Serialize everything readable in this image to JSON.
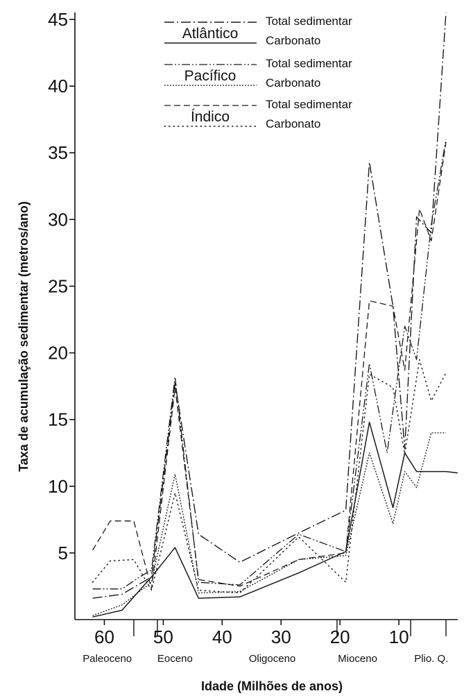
{
  "chart_data": {
    "type": "line",
    "xlabel": "Idade (Milhões de anos)",
    "ylabel": "Taxa de acumulação sedimentar (metros/ano)",
    "xlim": [
      65,
      0
    ],
    "ylim": [
      0,
      45
    ],
    "x_ticks": [
      {
        "value": 60,
        "label": "60"
      },
      {
        "value": 50,
        "label": "50"
      },
      {
        "value": 40,
        "label": "40"
      },
      {
        "value": 30,
        "label": "30"
      },
      {
        "value": 20,
        "label": "20"
      },
      {
        "value": 10,
        "label": "10"
      }
    ],
    "y_ticks": [
      {
        "value": 5,
        "label": "5"
      },
      {
        "value": 10,
        "label": "10"
      },
      {
        "value": 15,
        "label": "15"
      },
      {
        "value": 20,
        "label": "20"
      },
      {
        "value": 25,
        "label": "25"
      },
      {
        "value": 30,
        "label": "30"
      },
      {
        "value": 35,
        "label": "35"
      },
      {
        "value": 40,
        "label": "40"
      },
      {
        "value": 45,
        "label": "45"
      }
    ],
    "epoch_boundaries": [
      55,
      51,
      20.5,
      8,
      2
    ],
    "epochs": [
      {
        "label": "Paleoceno",
        "x": 59.5
      },
      {
        "label": "Eoceno",
        "x": 48
      },
      {
        "label": "Oligoceno",
        "x": 31.5
      },
      {
        "label": "Mioceno",
        "x": 17
      },
      {
        "label": "Plio. Q.",
        "x": 4.5
      }
    ],
    "legend": {
      "groups": [
        {
          "ocean": "Atlântico",
          "total_label": "Total sedimentar",
          "carbonate_label": "Carbonato"
        },
        {
          "ocean": "Pacífico",
          "total_label": "Total sedimentar",
          "carbonate_label": "Carbonato"
        },
        {
          "ocean": "Índico",
          "total_label": "Total sedimentar",
          "carbonate_label": "Carbonato"
        }
      ]
    },
    "series": [
      {
        "ocean": "Atlântico",
        "kind": "Total sedimentar",
        "style": "dashdot",
        "x": [
          62,
          57,
          52,
          48,
          44,
          37,
          27,
          19,
          15,
          11,
          9,
          7,
          4.5,
          2
        ],
        "y": [
          1.6,
          1.9,
          3.2,
          17.8,
          6.4,
          4.3,
          6.5,
          8.2,
          34.3,
          23.5,
          12.8,
          30.2,
          29,
          45.5
        ]
      },
      {
        "ocean": "Atlântico",
        "kind": "Carbonato",
        "style": "solid",
        "x": [
          62,
          57,
          52,
          48,
          44,
          37,
          27,
          19,
          15,
          11,
          9,
          7,
          4.5,
          2,
          0
        ],
        "y": [
          0.2,
          0.7,
          3.2,
          5.4,
          1.6,
          1.7,
          3.5,
          5.1,
          14.8,
          8.4,
          12.5,
          11.1,
          11.1,
          11.1,
          11
        ]
      },
      {
        "ocean": "Pacífico",
        "kind": "Total sedimentar",
        "style": "dashdotdot",
        "x": [
          62,
          57,
          54,
          52,
          48,
          44,
          37,
          27,
          19,
          15,
          12,
          9,
          7,
          4.5,
          2
        ],
        "y": [
          2.3,
          2.3,
          3.2,
          3.7,
          18.2,
          2.8,
          2.6,
          6.4,
          5.1,
          19.2,
          12.5,
          22,
          19.5,
          29.6,
          36
        ]
      },
      {
        "ocean": "Pacífico",
        "kind": "Carbonato",
        "style": "dotted",
        "x": [
          62,
          57,
          52,
          48,
          44,
          37,
          27,
          19,
          15,
          11,
          9,
          7,
          4.5,
          2
        ],
        "y": [
          0.3,
          1.1,
          2.8,
          10.9,
          2,
          2.1,
          4.5,
          4.8,
          12.5,
          7.2,
          11.1,
          9.9,
          14,
          14
        ]
      },
      {
        "ocean": "Índico",
        "kind": "Total sedimentar",
        "style": "dashed",
        "x": [
          62,
          59,
          55,
          52,
          48,
          44,
          37,
          27,
          19,
          15,
          11,
          9,
          6.5,
          4.5,
          2
        ],
        "y": [
          5.2,
          7.4,
          7.4,
          2.3,
          17.4,
          3,
          2.5,
          4.5,
          5,
          23.9,
          23.5,
          18.7,
          30.8,
          28.4,
          35.8
        ]
      },
      {
        "ocean": "Índico",
        "kind": "Carbonato",
        "style": "sparse-dotted",
        "x": [
          62,
          59,
          55,
          52,
          48,
          44,
          37,
          27,
          19,
          15,
          11,
          9,
          6.5,
          4.5,
          2
        ],
        "y": [
          2.8,
          4.4,
          4.5,
          2.2,
          9.5,
          2.2,
          2,
          6.2,
          2.8,
          18.4,
          17.4,
          12.4,
          19.5,
          16.4,
          18.5
        ]
      }
    ]
  }
}
